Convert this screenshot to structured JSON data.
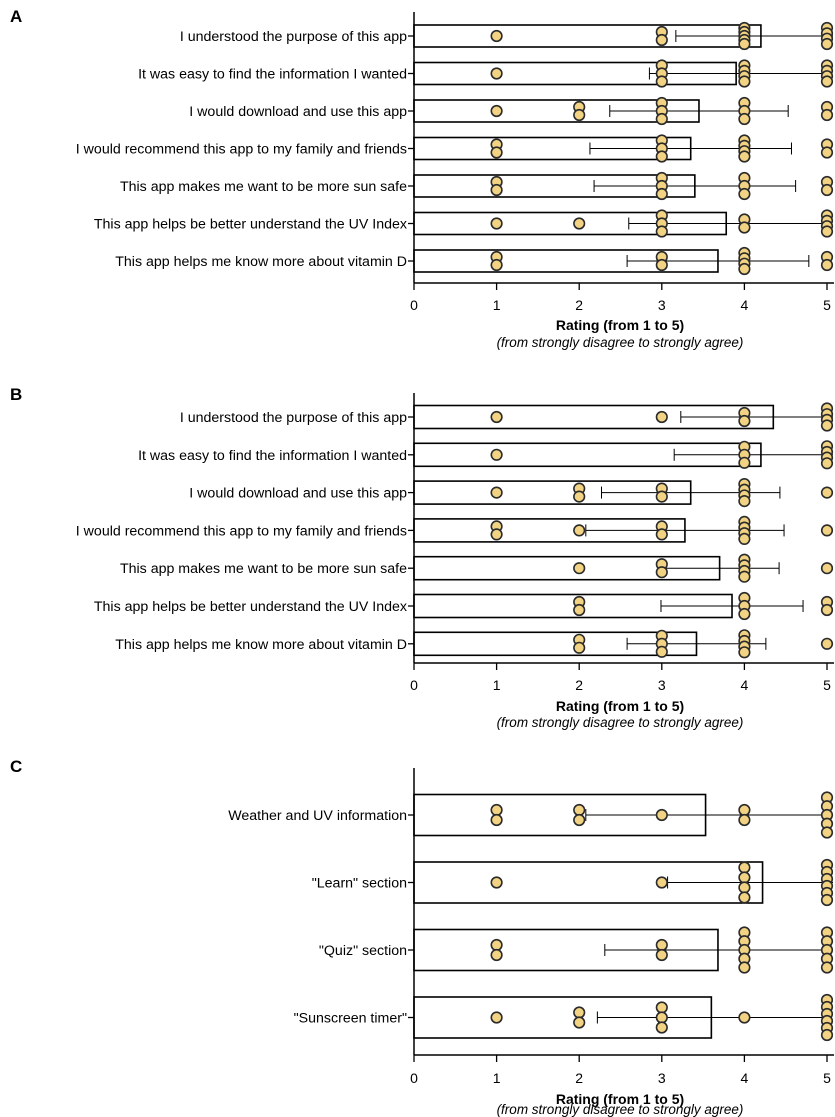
{
  "colors": {
    "dot_fill": "#f2d383",
    "dot_stroke": "#2b2b2b",
    "bar_stroke": "#000000",
    "axis": "#000000"
  },
  "chart_data": [
    {
      "panel": "A",
      "type": "bar",
      "orientation": "horizontal",
      "categories": [
        "I understood the purpose of this app",
        "It was easy to find the information I wanted",
        "I would download and use this app",
        "I would recommend this app to my family and friends",
        "This app makes me want to be more sun safe",
        "This app helps be better understand the UV Index",
        "This app helps me know more about vitamin D"
      ],
      "values": [
        4.2,
        3.9,
        3.45,
        3.35,
        3.4,
        3.78,
        3.68
      ],
      "error": [
        1.03,
        1.05,
        1.08,
        1.22,
        1.22,
        1.18,
        1.1
      ],
      "points": [
        [
          1,
          3,
          3,
          4,
          4,
          4,
          4,
          4,
          5,
          5,
          5,
          5
        ],
        [
          1,
          3,
          3,
          3,
          4,
          4,
          4,
          4,
          5,
          5,
          5,
          5
        ],
        [
          1,
          2,
          2,
          3,
          3,
          3,
          4,
          4,
          4,
          5,
          5
        ],
        [
          1,
          1,
          3,
          3,
          3,
          4,
          4,
          4,
          4,
          5,
          5
        ],
        [
          1,
          1,
          3,
          3,
          3,
          4,
          4,
          4,
          5,
          5
        ],
        [
          1,
          2,
          3,
          3,
          3,
          4,
          4,
          5,
          5,
          5,
          5
        ],
        [
          1,
          1,
          3,
          3,
          4,
          4,
          4,
          4,
          5,
          5
        ]
      ],
      "xlabel": "Rating (from 1 to 5)",
      "xsublabel": "(from strongly disagree to strongly agree)",
      "xlim": [
        0,
        5
      ],
      "xticks": [
        "0",
        "1",
        "2",
        "3",
        "4",
        "5"
      ]
    },
    {
      "panel": "B",
      "type": "bar",
      "orientation": "horizontal",
      "categories": [
        "I understood the purpose of this app",
        "It was easy to find the information I wanted",
        "I would download and use this app",
        "I would recommend this app to my family and friends",
        "This app makes me want to be more sun safe",
        "This app helps be better understand the UV Index",
        "This app helps me know more about vitamin D"
      ],
      "values": [
        4.35,
        4.2,
        3.35,
        3.28,
        3.7,
        3.85,
        3.42
      ],
      "error": [
        1.12,
        1.05,
        1.08,
        1.2,
        0.72,
        0.86,
        0.84
      ],
      "points": [
        [
          1,
          3,
          4,
          4,
          5,
          5,
          5,
          5
        ],
        [
          1,
          4,
          4,
          4,
          5,
          5,
          5,
          5
        ],
        [
          1,
          2,
          2,
          3,
          3,
          4,
          4,
          4,
          4,
          5
        ],
        [
          1,
          1,
          2,
          3,
          3,
          4,
          4,
          4,
          4,
          5
        ],
        [
          2,
          3,
          3,
          4,
          4,
          4,
          4,
          5
        ],
        [
          2,
          2,
          4,
          4,
          4,
          5,
          5
        ],
        [
          2,
          2,
          3,
          3,
          3,
          4,
          4,
          4,
          4,
          5
        ]
      ],
      "xlabel": "Rating (from 1 to 5)",
      "xsublabel": "(from strongly disagree to strongly agree)",
      "xlim": [
        0,
        5
      ],
      "xticks": [
        "0",
        "1",
        "2",
        "3",
        "4",
        "5"
      ]
    },
    {
      "panel": "C",
      "type": "bar",
      "orientation": "horizontal",
      "categories": [
        "Weather and UV information",
        "\"Learn\" section",
        "\"Quiz\" section",
        "\"Sunscreen timer\""
      ],
      "values": [
        3.53,
        4.22,
        3.68,
        3.6
      ],
      "error": [
        1.45,
        1.15,
        1.37,
        1.38
      ],
      "points": [
        [
          1,
          1,
          2,
          2,
          3,
          4,
          4,
          5,
          5,
          5,
          5,
          5
        ],
        [
          1,
          3,
          4,
          4,
          4,
          4,
          5,
          5,
          5,
          5,
          5,
          5
        ],
        [
          1,
          1,
          3,
          3,
          4,
          4,
          4,
          4,
          4,
          5,
          5,
          5,
          5,
          5
        ],
        [
          1,
          2,
          2,
          3,
          3,
          3,
          4,
          5,
          5,
          5,
          5,
          5,
          5
        ]
      ],
      "xlabel": "Rating (from 1 to 5)",
      "xsublabel": "(from strongly disagree to strongly agree)",
      "xlim": [
        0,
        5
      ],
      "xticks": [
        "0",
        "1",
        "2",
        "3",
        "4",
        "5"
      ]
    }
  ]
}
